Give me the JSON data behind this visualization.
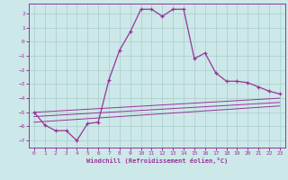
{
  "xlabel": "Windchill (Refroidissement éolien,°C)",
  "background_color": "#cce8e8",
  "grid_color": "#aacccc",
  "line_color": "#993399",
  "xlim": [
    -0.5,
    23.5
  ],
  "ylim": [
    -7.5,
    2.7
  ],
  "xticks": [
    0,
    1,
    2,
    3,
    4,
    5,
    6,
    7,
    8,
    9,
    10,
    11,
    12,
    13,
    14,
    15,
    16,
    17,
    18,
    19,
    20,
    21,
    22,
    23
  ],
  "yticks": [
    -7,
    -6,
    -5,
    -4,
    -3,
    -2,
    -1,
    0,
    1,
    2
  ],
  "main_line_x": [
    0,
    1,
    2,
    3,
    4,
    5,
    6,
    7,
    8,
    9,
    10,
    11,
    12,
    13,
    14,
    15,
    16,
    17,
    18,
    19,
    20,
    21,
    22,
    23
  ],
  "main_line_y": [
    -5.0,
    -5.9,
    -6.3,
    -6.3,
    -7.0,
    -5.8,
    -5.7,
    -2.7,
    -0.6,
    0.7,
    2.3,
    2.3,
    1.8,
    2.3,
    2.3,
    -1.2,
    -0.8,
    -2.2,
    -2.8,
    -2.8,
    -2.9,
    -3.2,
    -3.5,
    -3.7
  ],
  "line2_x": [
    0,
    23
  ],
  "line2_y": [
    -5.0,
    -4.0
  ],
  "line3_x": [
    0,
    23
  ],
  "line3_y": [
    -5.3,
    -4.3
  ],
  "line4_x": [
    0,
    23
  ],
  "line4_y": [
    -5.7,
    -4.55
  ]
}
